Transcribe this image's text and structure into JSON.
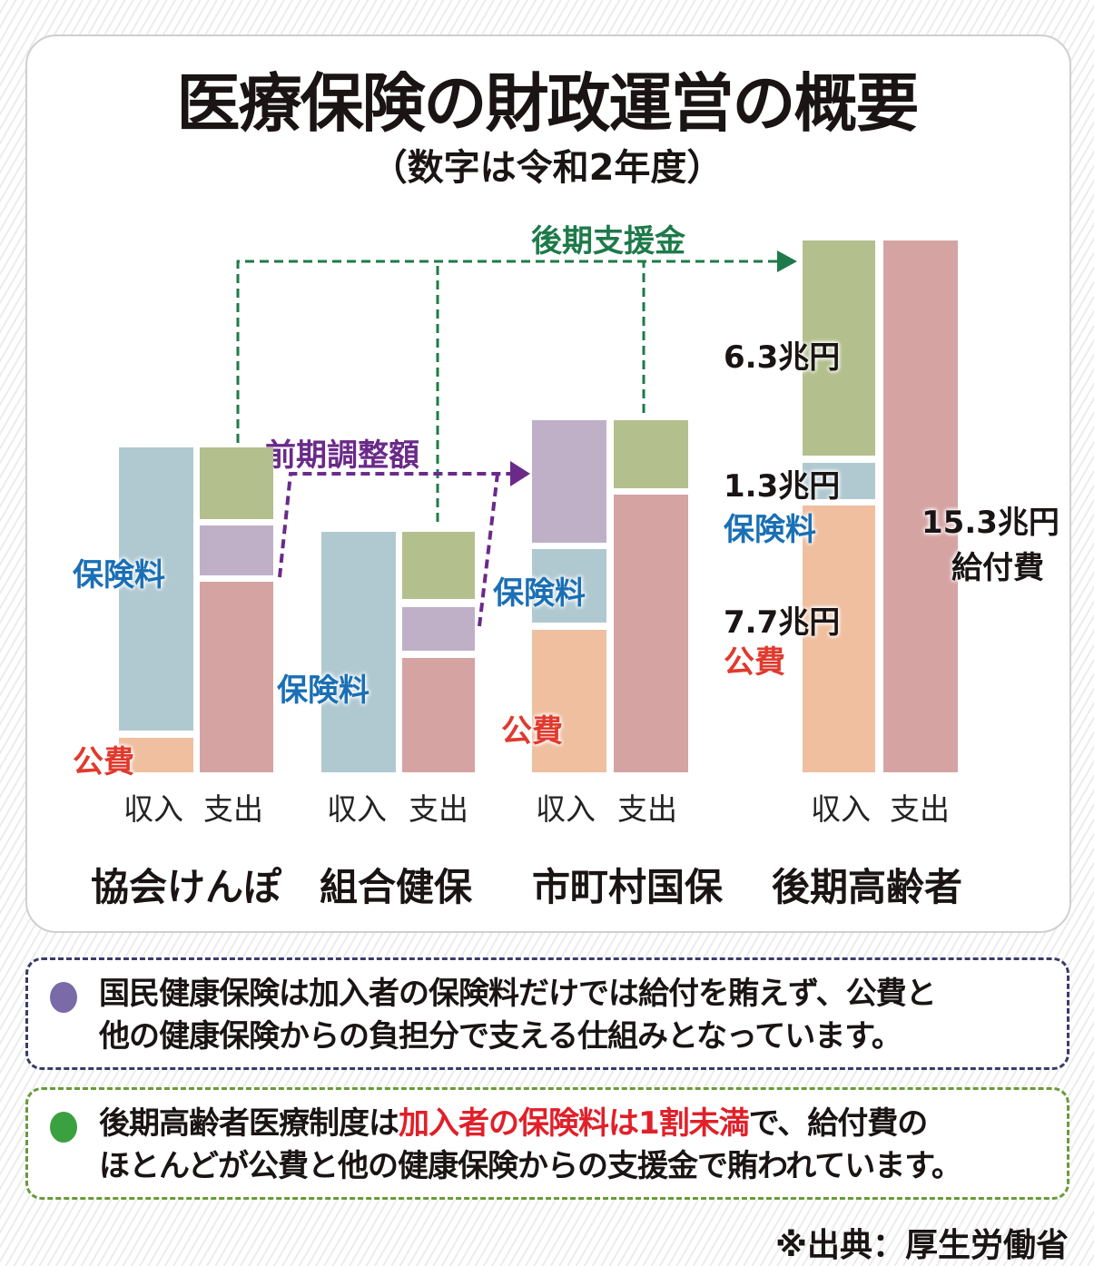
{
  "title": "医療保険の財政運営の概要",
  "subtitle": "（数字は令和2年度）",
  "colors": {
    "premium": "#b0c9d1",
    "public": "#efbfa0",
    "support": "#b4bf8e",
    "adjustment": "#bfb0c8",
    "benefit": "#d6a3a3",
    "premium_text": "#1a6fb5",
    "public_text": "#e03a2e",
    "support_line": "#1e7a4a",
    "adjustment_line": "#6a2a8a"
  },
  "flows": {
    "support": "後期支援金",
    "adjustment": "前期調整額"
  },
  "chart_data": {
    "type": "bar",
    "stacked": true,
    "categories": [
      "協会けんぽ",
      "組合健保",
      "市町村国保",
      "後期高齢者"
    ],
    "bar_labels": {
      "income": "収入",
      "expense": "支出"
    },
    "groups": [
      {
        "name": "協会けんぽ",
        "income": [
          {
            "label": "保険料"
          },
          {
            "label": "公費"
          }
        ],
        "expense": [
          "support",
          "adjustment",
          "benefit"
        ]
      },
      {
        "name": "組合健保",
        "income": [
          {
            "label": "保険料"
          }
        ],
        "expense": [
          "support",
          "adjustment",
          "benefit"
        ]
      },
      {
        "name": "市町村国保",
        "income": [
          {
            "label": "adjustment"
          },
          {
            "label": "保険料"
          },
          {
            "label": "公費"
          }
        ],
        "expense": [
          "support",
          "benefit"
        ]
      },
      {
        "name": "後期高齢者",
        "income": [
          {
            "label": "support",
            "value": 6.3,
            "text": "6.3兆円"
          },
          {
            "label": "保険料",
            "value": 1.3,
            "text": "1.3兆円"
          },
          {
            "label": "公費",
            "value": 7.7,
            "text": "7.7兆円"
          }
        ],
        "expense": [
          {
            "label": "給付費",
            "value": 15.3,
            "text": "15.3兆円"
          }
        ]
      }
    ],
    "unit": "兆円"
  },
  "labels": {
    "premium": "保険料",
    "public": "公費",
    "benefit": "給付費"
  },
  "notes": [
    {
      "line1": "国民健康保険は加入者の保険料だけでは給付を賄えず、公費と",
      "line2": "他の健康保険からの負担分で支える仕組みとなっています。"
    },
    {
      "line1_a": "後期高齢者医療制度は",
      "line1_b": "加入者の保険料は1割未満",
      "line1_c": "で、給付費の",
      "line2": "ほとんどが公費と他の健康保険からの支援金で賄われています。"
    }
  ],
  "note_colors": {
    "note1_dot": "#7a6aa8",
    "note1_border": "#3a3a6a",
    "note2_dot": "#3aa040",
    "note2_border": "#6a9a3a",
    "highlight": "#e0202a"
  },
  "source": "※出典：厚生労働省"
}
